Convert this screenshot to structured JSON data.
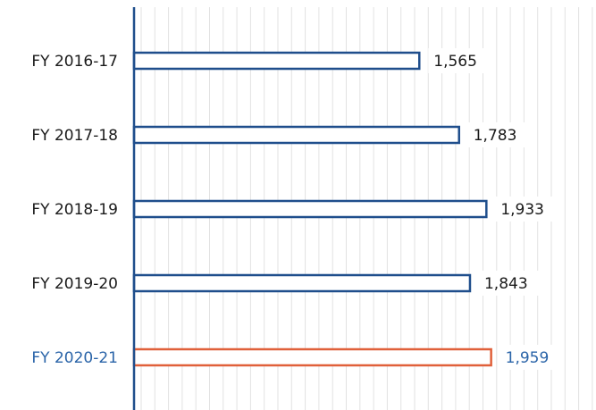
{
  "chart_data": {
    "type": "hbar",
    "categories": [
      "FY 2016-17",
      "FY 2017-18",
      "FY 2018-19",
      "FY 2019-20",
      "FY 2020-21"
    ],
    "values": [
      1565,
      1783,
      1933,
      1843,
      1959
    ],
    "value_labels": [
      "1,565",
      "1,783",
      "1,933",
      "1,843",
      "1,959"
    ],
    "colors": [
      "#1f4e8c",
      "#1f4e8c",
      "#1f4e8c",
      "#1f4e8c",
      "#e0603a"
    ],
    "label_colors": [
      "#1a1a1a",
      "#1a1a1a",
      "#1a1a1a",
      "#1a1a1a",
      "#2a64a8"
    ],
    "xlim": [
      0,
      2500
    ],
    "xticks": [
      0,
      75,
      150,
      225,
      300,
      375,
      450,
      525,
      600,
      675,
      750,
      825,
      900,
      975,
      1050,
      1125,
      1200,
      1275,
      1350,
      1425,
      1500,
      1575,
      1650,
      1725,
      1800,
      1875,
      1950,
      2025,
      2100,
      2175,
      2250,
      2325,
      2400,
      2475
    ],
    "grid": true
  }
}
